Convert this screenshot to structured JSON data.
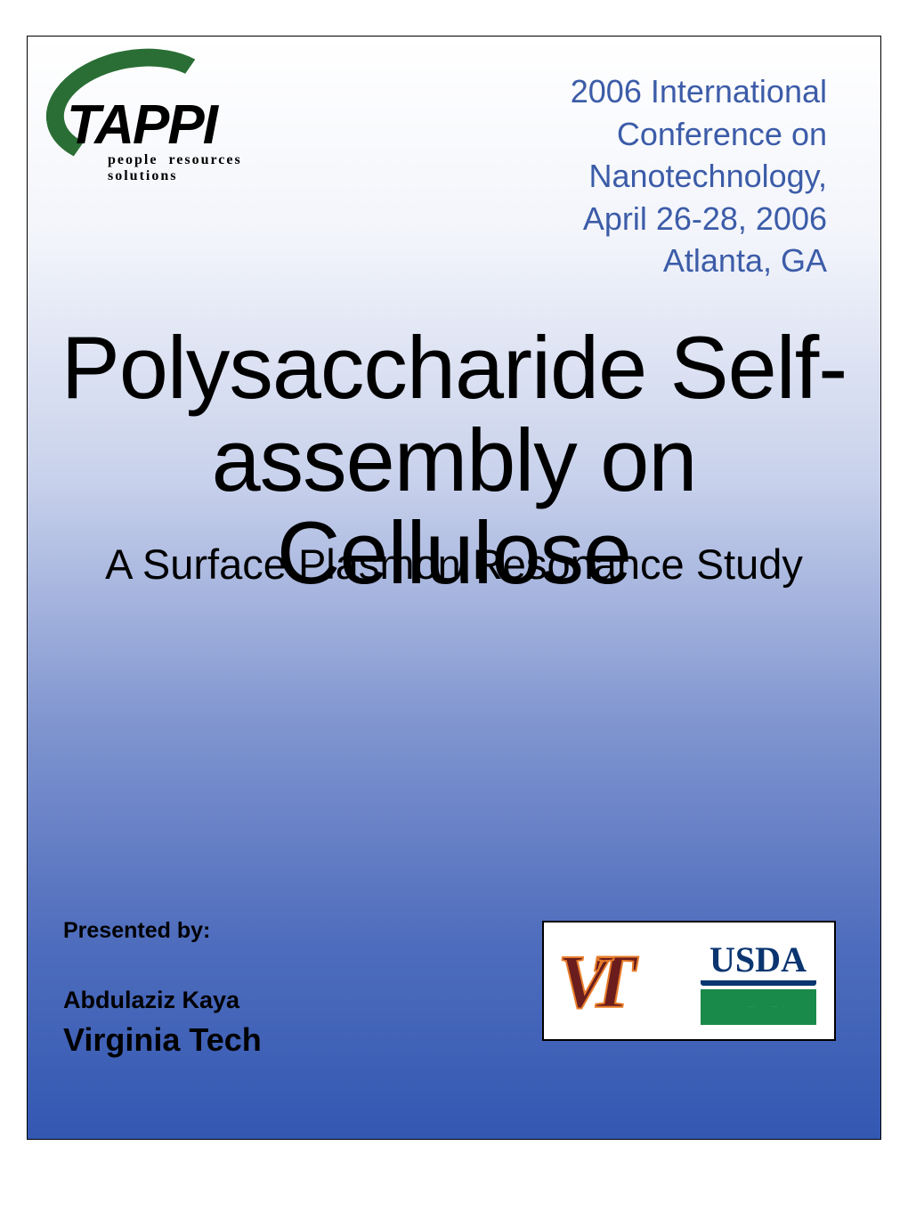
{
  "colors": {
    "gradient_top": "#ffffff",
    "gradient_bottom": "#3358b2",
    "conf_text": "#3c5ca8",
    "tappi_green": "#2a6e35",
    "vt_maroon": "#6b1d1d",
    "vt_orange": "#e77c2a",
    "usda_blue": "#0a3570",
    "usda_green": "#1a8a4a",
    "border": "#000000"
  },
  "tappi": {
    "name": "TAPPI",
    "tagline": "people resources solutions"
  },
  "conference": {
    "line1": "2006 International",
    "line2": "Conference on",
    "line3": "Nanotechnology,",
    "line4": "April 26-28, 2006",
    "line5": "Atlanta, GA"
  },
  "title": {
    "line1": "Polysaccharide Self-",
    "line2": "assembly on Cellulose"
  },
  "subtitle": "A Surface Plasmon Resonance Study",
  "presented": {
    "label": "Presented by:",
    "name": "Abdulaziz Kaya",
    "affiliation": "Virginia Tech"
  },
  "logos": {
    "vt": "VT",
    "usda": "USDA"
  },
  "typography": {
    "title_fontsize": 99,
    "subtitle_fontsize": 47,
    "conf_fontsize": 36,
    "presented_label_fontsize": 25,
    "presenter_fontsize": 27,
    "affiliation_fontsize": 36
  }
}
